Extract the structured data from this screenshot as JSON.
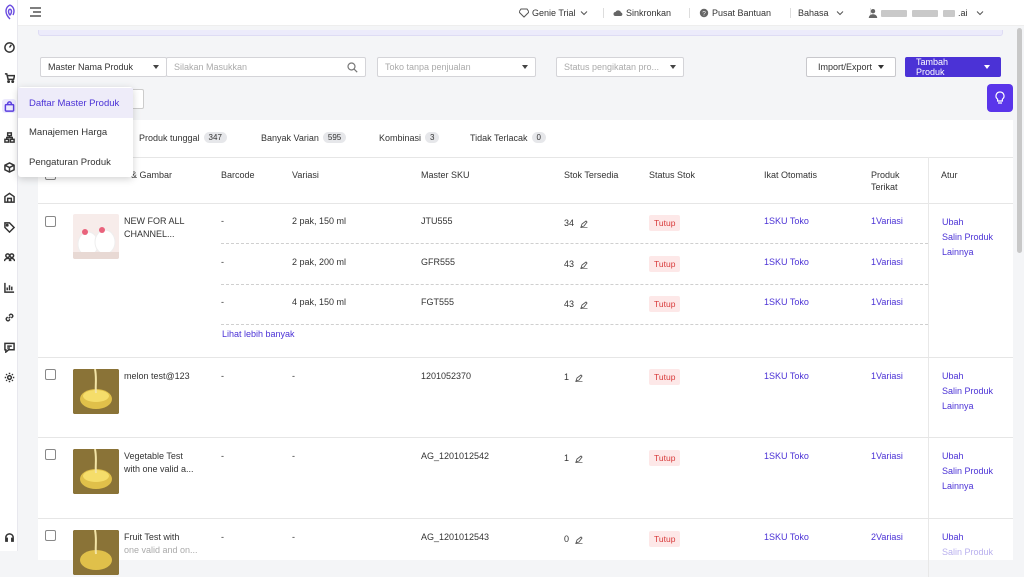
{
  "topbar": {
    "genie_trial": "Genie Trial",
    "sinkronkan": "Sinkronkan",
    "pusat_bantuan": "Pusat Bantuan",
    "bahasa": "Bahasa",
    "account_suffix": ".ai"
  },
  "filters": {
    "field_select": "Master Nama Produk",
    "search_placeholder": "Silakan Masukkan",
    "store_placeholder": "Toko tanpa penjualan",
    "status_placeholder": "Status pengikatan pro...",
    "import_export": "Import/Export",
    "add_product": "Tambah Produk"
  },
  "dropdown": {
    "items": [
      "Daftar Master Produk",
      "Manajemen Harga",
      "Pengaturan Produk"
    ]
  },
  "tabs": [
    {
      "label": "Produk tunggal",
      "count": "347"
    },
    {
      "label": "Banyak Varian",
      "count": "595"
    },
    {
      "label": "Kombinasi",
      "count": "3"
    },
    {
      "label": "Tidak Terlacak",
      "count": "0"
    }
  ],
  "table": {
    "headers": {
      "name": "& Gambar",
      "barcode": "Barcode",
      "variasi": "Variasi",
      "sku": "Master SKU",
      "stok": "Stok Tersedia",
      "status": "Status Stok",
      "ikat": "Ikat Otomatis",
      "produk_l1": "Produk",
      "produk_l2": "Terikat",
      "atur": "Atur"
    },
    "show_more": "Lihat lebih banyak",
    "actions": {
      "edit": "Ubah",
      "copy": "Salin Produk",
      "more": "Lainnya"
    },
    "rows": [
      {
        "name_l1": "NEW FOR ALL",
        "name_l2": "CHANNEL...",
        "variants": [
          {
            "barcode": "-",
            "variasi": "2 pak, 150 ml",
            "sku": "JTU555",
            "stok": "34",
            "status": "Tutup",
            "ikat": "1SKU Toko",
            "produk": "1Variasi"
          },
          {
            "barcode": "-",
            "variasi": "2 pak, 200 ml",
            "sku": "GFR555",
            "stok": "43",
            "status": "Tutup",
            "ikat": "1SKU Toko",
            "produk": "1Variasi"
          },
          {
            "barcode": "-",
            "variasi": "4 pak, 150 ml",
            "sku": "FGT555",
            "stok": "43",
            "status": "Tutup",
            "ikat": "1SKU Toko",
            "produk": "1Variasi"
          }
        ]
      },
      {
        "name_l1": "melon test@123",
        "name_l2": "",
        "barcode": "-",
        "variasi": "-",
        "sku": "1201052370",
        "stok": "1",
        "status": "Tutup",
        "ikat": "1SKU Toko",
        "produk": "1Variasi"
      },
      {
        "name_l1": "Vegetable Test",
        "name_l2": "with one valid a...",
        "barcode": "-",
        "variasi": "-",
        "sku": "AG_1201012542",
        "stok": "1",
        "status": "Tutup",
        "ikat": "1SKU Toko",
        "produk": "1Variasi"
      },
      {
        "name_l1": "Fruit Test with",
        "name_l2": "one valid and on...",
        "barcode": "-",
        "variasi": "-",
        "sku": "AG_1201012543",
        "stok": "0",
        "status": "Tutup",
        "ikat": "1SKU Toko",
        "produk": "2Variasi"
      }
    ]
  },
  "colors": {
    "accent": "#4b32d6",
    "badge_bg": "#fde8e8",
    "badge_text": "#d83a3a"
  }
}
